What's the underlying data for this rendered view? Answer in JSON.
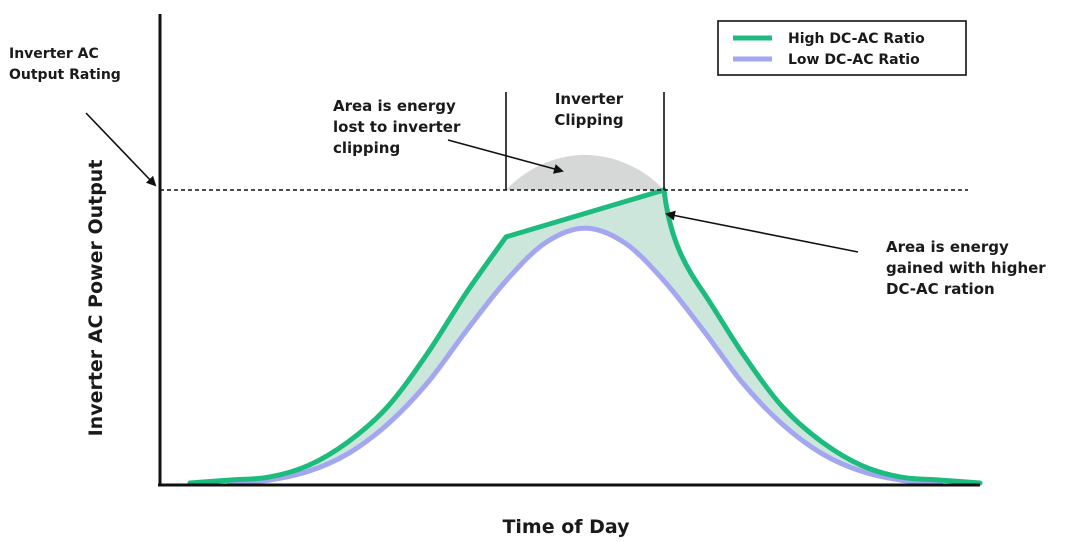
{
  "chart_data": {
    "type": "area",
    "title": "",
    "xlabel": "Time of Day",
    "ylabel": "Inverter AC Power Output",
    "grid": false,
    "legend_position": "top-right",
    "x": [
      0,
      5,
      10,
      15,
      20,
      25,
      30,
      35,
      40,
      45,
      50,
      55,
      60,
      65,
      70,
      75,
      80,
      85,
      90,
      95,
      100
    ],
    "series": [
      {
        "name": "High DC-AC Ratio",
        "color": "#1dbb7e",
        "values": [
          0.0,
          0.01,
          0.02,
          0.06,
          0.14,
          0.26,
          0.44,
          0.65,
          0.84,
          0.96,
          1.0,
          0.96,
          0.84,
          0.65,
          0.44,
          0.26,
          0.14,
          0.06,
          0.02,
          0.01,
          0.0
        ]
      },
      {
        "name": "Low DC-AC Ratio",
        "color": "#a3a6f0",
        "values": [
          0.0,
          0.0,
          0.01,
          0.04,
          0.1,
          0.2,
          0.34,
          0.52,
          0.69,
          0.82,
          0.87,
          0.82,
          0.69,
          0.52,
          0.34,
          0.2,
          0.1,
          0.04,
          0.01,
          0.0,
          0.0
        ]
      }
    ],
    "unclipped_peak": 1.12,
    "threshold_value": 1.0,
    "threshold_label": "Inverter AC Output Rating",
    "clip_window": [
      40,
      60
    ],
    "clip_label": "Inverter Clipping",
    "annotations": {
      "lost": "Area is energy lost to inverter clipping",
      "gained": "Area is energy gained with higher DC-AC ration"
    },
    "colors": {
      "gained_fill": "#cde6dc",
      "lost_fill": "#d6d8d7",
      "axis": "#111111"
    }
  }
}
